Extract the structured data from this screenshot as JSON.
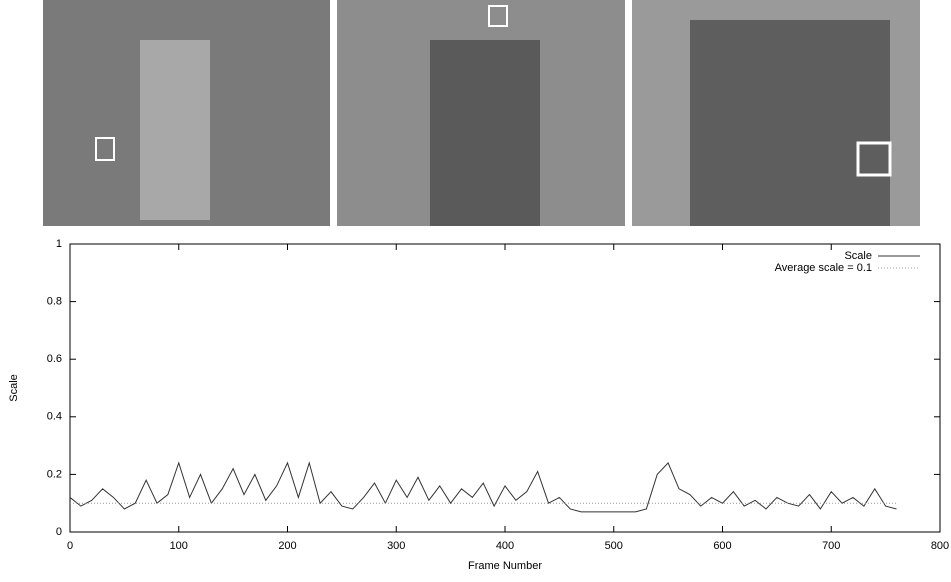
{
  "chart_data": {
    "type": "line",
    "xlabel": "Frame Number",
    "ylabel": "Scale",
    "xlim": [
      0,
      800
    ],
    "ylim": [
      0,
      1
    ],
    "xticks": [
      0,
      100,
      200,
      300,
      400,
      500,
      600,
      700,
      800
    ],
    "yticks": [
      0,
      0.2,
      0.4,
      0.6,
      0.8,
      1
    ],
    "legend": "upper right",
    "series": [
      {
        "name": "Scale",
        "color": "#333333",
        "style": "solid",
        "x": [
          0,
          10,
          20,
          30,
          40,
          50,
          60,
          70,
          80,
          90,
          100,
          110,
          120,
          130,
          140,
          150,
          160,
          170,
          180,
          190,
          200,
          210,
          220,
          230,
          240,
          250,
          260,
          270,
          280,
          290,
          300,
          310,
          320,
          330,
          340,
          350,
          360,
          370,
          380,
          390,
          400,
          410,
          420,
          430,
          440,
          450,
          460,
          470,
          480,
          490,
          500,
          510,
          520,
          530,
          540,
          550,
          560,
          570,
          580,
          590,
          600,
          610,
          620,
          630,
          640,
          650,
          660,
          670,
          680,
          690,
          700,
          710,
          720,
          730,
          740,
          750,
          760
        ],
        "values": [
          0.12,
          0.09,
          0.11,
          0.15,
          0.12,
          0.08,
          0.1,
          0.18,
          0.1,
          0.13,
          0.24,
          0.12,
          0.2,
          0.1,
          0.15,
          0.22,
          0.13,
          0.2,
          0.11,
          0.16,
          0.24,
          0.12,
          0.24,
          0.1,
          0.14,
          0.09,
          0.08,
          0.12,
          0.17,
          0.1,
          0.18,
          0.12,
          0.19,
          0.11,
          0.16,
          0.1,
          0.15,
          0.12,
          0.17,
          0.09,
          0.16,
          0.11,
          0.14,
          0.21,
          0.1,
          0.12,
          0.08,
          0.07,
          0.07,
          0.07,
          0.07,
          0.07,
          0.07,
          0.08,
          0.2,
          0.24,
          0.15,
          0.13,
          0.09,
          0.12,
          0.1,
          0.14,
          0.09,
          0.11,
          0.08,
          0.12,
          0.1,
          0.09,
          0.13,
          0.08,
          0.14,
          0.1,
          0.12,
          0.09,
          0.15,
          0.09,
          0.08
        ]
      },
      {
        "name": "Average scale = 0.1",
        "color": "#999999",
        "style": "dotted",
        "x": [
          0,
          760
        ],
        "values": [
          0.1,
          0.1
        ]
      }
    ]
  }
}
